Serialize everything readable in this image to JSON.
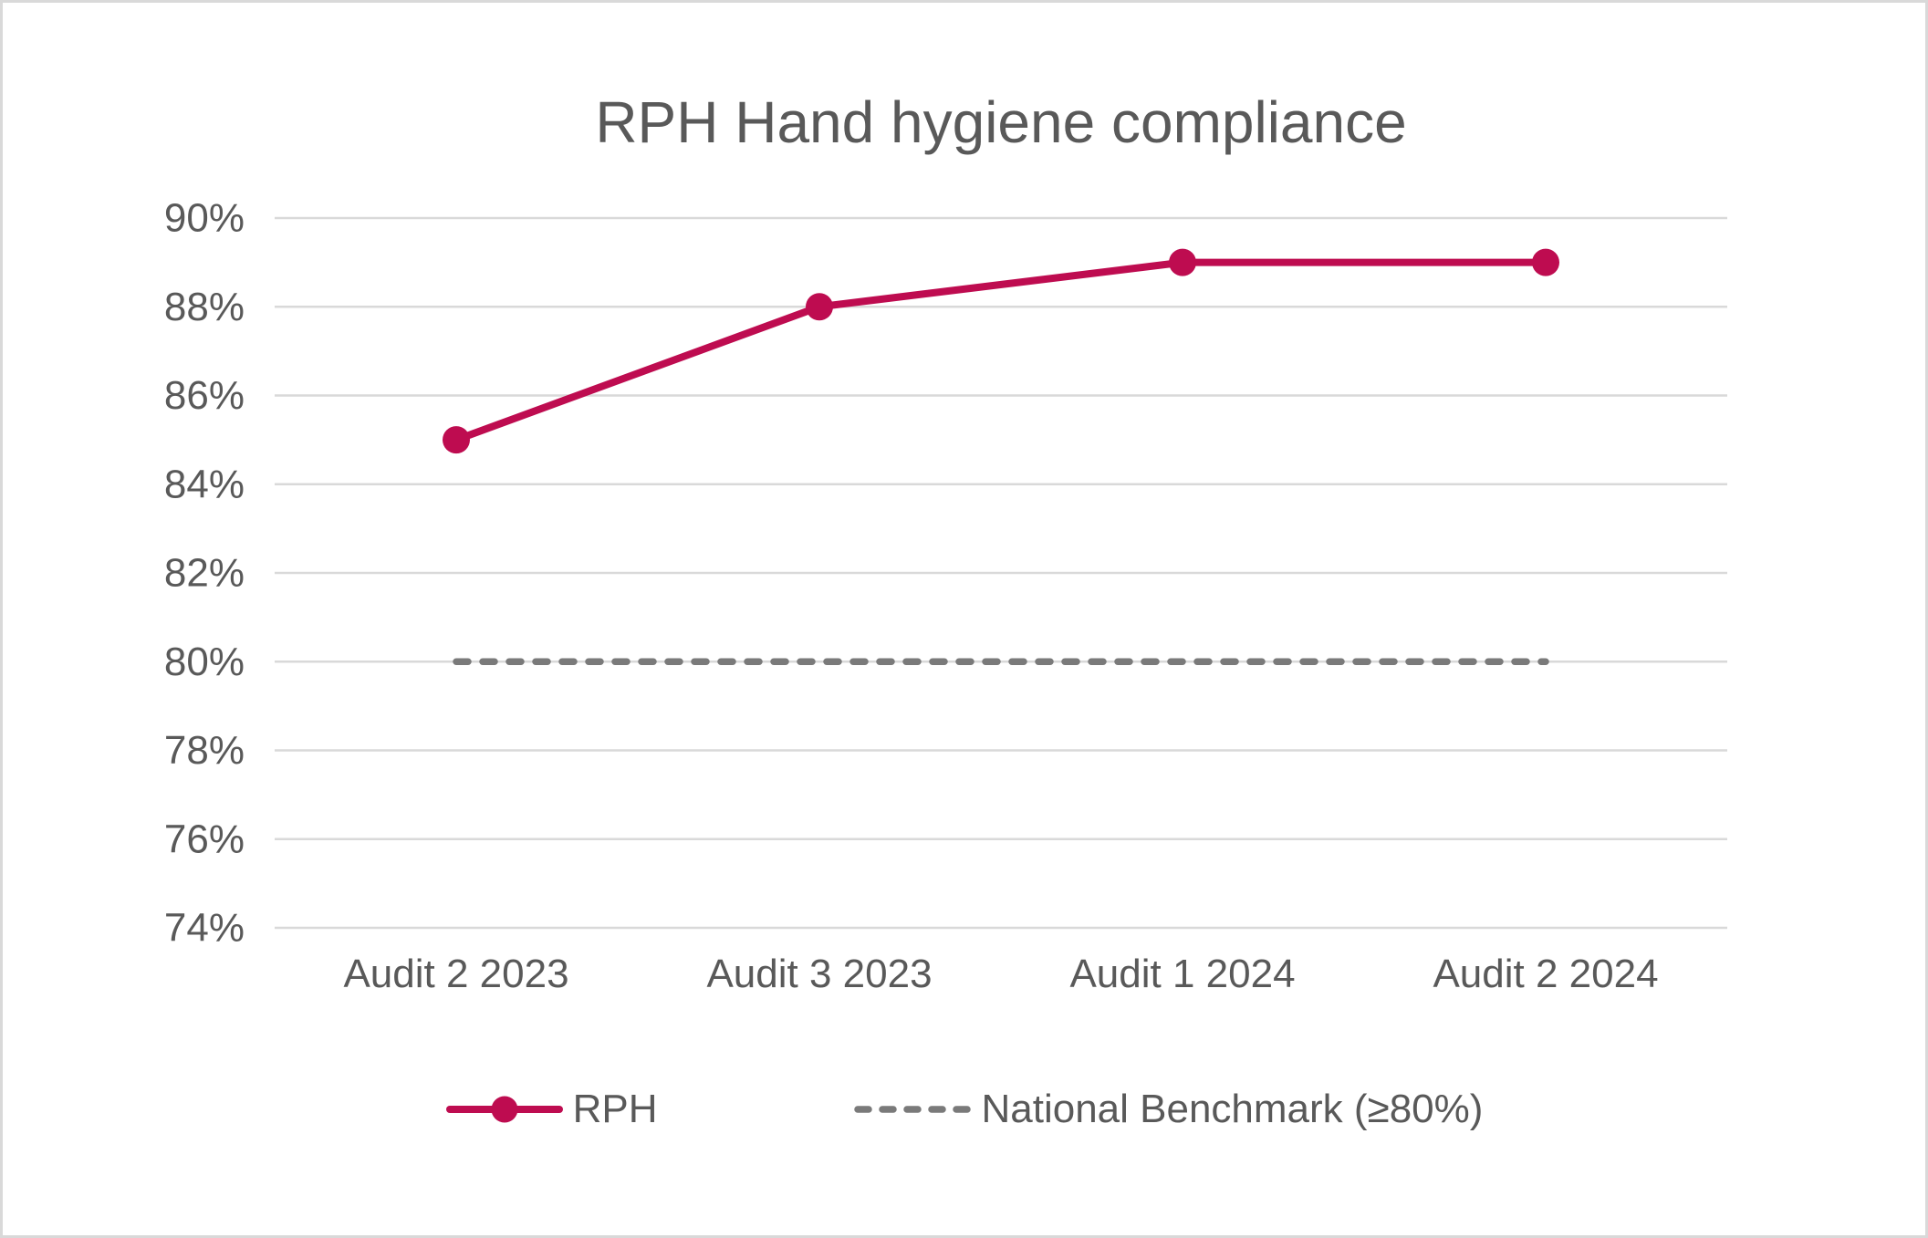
{
  "frame": {
    "background": "#FFFFFF",
    "border_color": "#D9D9D9"
  },
  "chart_data": {
    "type": "line",
    "title": "RPH Hand hygiene compliance",
    "categories": [
      "Audit 2 2023",
      "Audit 3 2023",
      "Audit 1 2024",
      "Audit 2 2024"
    ],
    "series": [
      {
        "name": "RPH",
        "values": [
          85,
          88,
          89,
          89
        ],
        "color": "#BE0C50",
        "line_style": "solid",
        "marker": "circle"
      },
      {
        "name": "National Benchmark (≥80%)",
        "values": [
          80,
          80,
          80,
          80
        ],
        "color": "#7A7A7A",
        "line_style": "dashed",
        "marker": "none"
      }
    ],
    "ylim": [
      74,
      90
    ],
    "ytick_step": 2,
    "ytick_suffix": "%",
    "grid": true,
    "legend_position": "bottom",
    "colors": {
      "gridline": "#D9D9D9",
      "labels": "#595959",
      "title": "#595959"
    }
  }
}
